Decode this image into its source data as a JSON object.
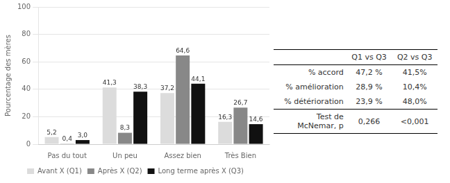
{
  "chart_data": {
    "type": "bar",
    "categories": [
      "Pas du tout",
      "Un peu",
      "Assez bien",
      "Très Bien"
    ],
    "series": [
      {
        "name": "Avant X (Q1)",
        "color": "#dcdcdc",
        "values": [
          5.2,
          41.3,
          37.2,
          16.3
        ],
        "value_labels": [
          "5,2",
          "41,3",
          "37,2",
          "16,3"
        ]
      },
      {
        "name": "Après X (Q2)",
        "color": "#888888",
        "values": [
          0.4,
          8.3,
          64.6,
          26.7
        ],
        "value_labels": [
          "0,4",
          "8,3",
          "64,6",
          "26,7"
        ]
      },
      {
        "name": "Long terme après X (Q3)",
        "color": "#111111",
        "values": [
          3.0,
          38.3,
          44.1,
          14.6
        ],
        "value_labels": [
          "3,0",
          "38,3",
          "44,1",
          "14,6"
        ]
      }
    ],
    "ylabel": "Pourcentage des mères",
    "ylim": [
      0,
      100
    ],
    "yticks": [
      0,
      20,
      40,
      60,
      80,
      100
    ],
    "grid": true,
    "legend": "bottom",
    "data_labels": true,
    "table": {
      "headers": [
        "Q1 vs Q3",
        "Q2 vs Q3"
      ],
      "rows": [
        [
          "% accord",
          "47,2 %",
          "41,5%"
        ],
        [
          "% amélioration",
          "28,9 %",
          "10,4%"
        ],
        [
          "% détérioration",
          "23,9 %",
          "48,0%"
        ],
        [
          "Test de\nMcNemar, p",
          "0,266",
          "<0,001"
        ]
      ]
    }
  }
}
